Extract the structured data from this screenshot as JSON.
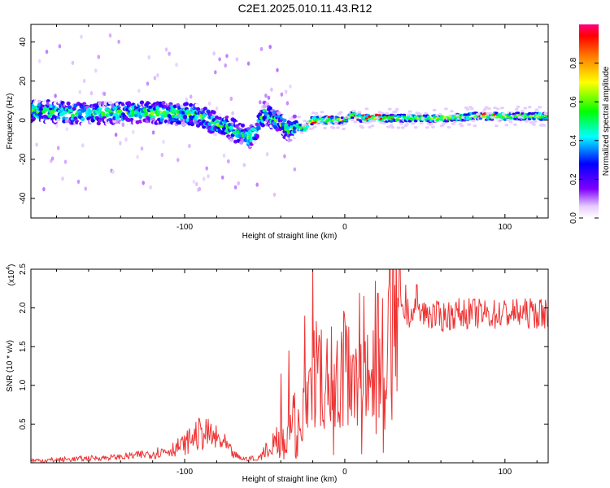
{
  "title": "C2E1.2025.010.11.43.R12",
  "chart_data": [
    {
      "type": "heatmap",
      "xlabel": "Height of straight line (km)",
      "ylabel": "Frequency (Hz)",
      "xlim": [
        -196,
        127
      ],
      "ylim": [
        -50,
        49
      ],
      "xticks": [
        -100,
        0,
        100
      ],
      "yticks": [
        -40,
        -20,
        0,
        20,
        40
      ],
      "grid": false,
      "colorbar": {
        "label": "Normalized spectral amplitude",
        "range": [
          0,
          1
        ],
        "ticks": [
          "0.0",
          "0.2",
          "0.4",
          "0.6",
          "0.8"
        ],
        "colors": [
          "#ffffff",
          "#8000ff",
          "#0000ff",
          "#00ffff",
          "#00ff00",
          "#ffff00",
          "#ff8000",
          "#ff0000"
        ]
      },
      "ridge": {
        "x": [
          -196,
          -180,
          -160,
          -140,
          -120,
          -100,
          -90,
          -80,
          -70,
          -60,
          -55,
          -50,
          -45,
          -40,
          -35,
          -30,
          -25,
          -20,
          -10,
          0,
          5,
          10,
          20,
          40,
          60,
          80,
          100,
          127
        ],
        "y": [
          5,
          4,
          3,
          4,
          4,
          3,
          2,
          -2,
          -5,
          -9,
          -5,
          4,
          1,
          -2,
          -5,
          -3,
          -4,
          0,
          0,
          0,
          3,
          1,
          1,
          1,
          1,
          2,
          2,
          2
        ]
      }
    },
    {
      "type": "line",
      "xlabel": "Height of straight line (km)",
      "ylabel": "SNR (10 * v/v)",
      "y_multiplier": "(x10",
      "y_multiplier_exp": "4",
      "xlim": [
        -196,
        127
      ],
      "ylim": [
        0,
        2.5
      ],
      "xticks": [
        -100,
        0,
        100
      ],
      "yticks": [
        "0.5",
        "1.0",
        "1.5",
        "2.0",
        "2.5"
      ],
      "grid": false,
      "color": "#ee3333",
      "envelope": {
        "x": [
          -196,
          -180,
          -160,
          -140,
          -130,
          -120,
          -110,
          -100,
          -95,
          -90,
          -85,
          -80,
          -75,
          -70,
          -65,
          -60,
          -55,
          -50,
          -45,
          -40,
          -35,
          -30,
          -25,
          -20,
          -15,
          -10,
          -5,
          0,
          5,
          10,
          15,
          20,
          25,
          30,
          35,
          40,
          50,
          60,
          70,
          80,
          90,
          100,
          110,
          127
        ],
        "y": [
          0.03,
          0.04,
          0.06,
          0.08,
          0.1,
          0.13,
          0.17,
          0.25,
          0.35,
          0.4,
          0.38,
          0.32,
          0.25,
          0.12,
          0.06,
          0.05,
          0.08,
          0.2,
          0.3,
          0.4,
          0.55,
          0.7,
          0.75,
          1.2,
          1.3,
          1.15,
          1.2,
          1.3,
          1.4,
          1.45,
          1.55,
          1.6,
          1.75,
          1.85,
          1.9,
          1.95,
          1.95,
          1.9,
          1.95,
          1.95,
          1.93,
          1.95,
          1.95,
          1.95
        ]
      },
      "spikes": [
        {
          "x": -20,
          "y": 2.55
        },
        {
          "x": -25,
          "y": 1.9
        },
        {
          "x": -35,
          "y": 1.45
        },
        {
          "x": -40,
          "y": 1.15
        },
        {
          "x": -16,
          "y": 1.65
        },
        {
          "x": 45,
          "y": 2.3
        },
        {
          "x": 38,
          "y": 2.3
        }
      ]
    }
  ]
}
